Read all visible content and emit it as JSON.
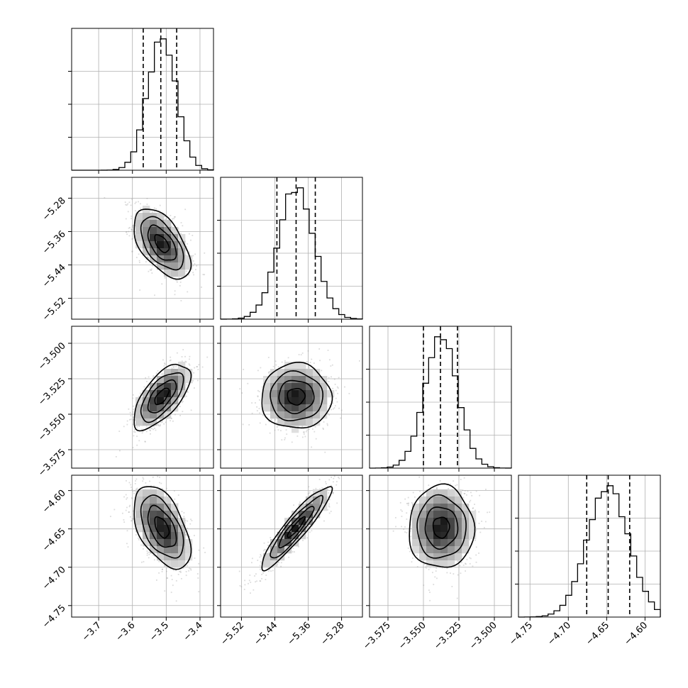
{
  "chart_data": {
    "type": "corner",
    "parameters": [
      {
        "ticks": [
          -3.7,
          -3.6,
          -3.5,
          -3.4
        ],
        "tick_labels": [
          "−3.7",
          "−3.6",
          "−3.5",
          "−3.4"
        ],
        "range": [
          -3.78,
          -3.36
        ],
        "mean": -3.513,
        "sd": 0.042,
        "quantiles": [
          -3.568,
          -3.516,
          -3.469
        ]
      },
      {
        "ticks": [
          -5.52,
          -5.44,
          -5.36,
          -5.28
        ],
        "tick_labels": [
          "−5.52",
          "−5.44",
          "−5.36",
          "−5.28"
        ],
        "range": [
          -5.57,
          -5.23
        ],
        "mean": -5.389,
        "sd": 0.042,
        "quantiles": [
          -5.435,
          -5.389,
          -5.343
        ]
      },
      {
        "ticks": [
          -3.575,
          -3.55,
          -3.525,
          -3.5
        ],
        "tick_labels": [
          "−3.575",
          "−3.550",
          "−3.525",
          "−3.500"
        ],
        "range": [
          -3.588,
          -3.488
        ],
        "mean": -3.5375,
        "sd": 0.0115,
        "quantiles": [
          -3.55,
          -3.538,
          -3.526
        ]
      },
      {
        "ticks": [
          -4.75,
          -4.7,
          -4.65,
          -4.6
        ],
        "tick_labels": [
          "−4.75",
          "−4.70",
          "−4.65",
          "−4.60"
        ],
        "range": [
          -4.765,
          -4.58
        ],
        "mean": -4.648,
        "sd": 0.027,
        "quantiles": [
          -4.676,
          -4.648,
          -4.62
        ]
      }
    ],
    "correlations": [
      [
        1.0,
        -0.55,
        0.65,
        -0.5
      ],
      [
        -0.55,
        1.0,
        0.0,
        0.92
      ],
      [
        0.65,
        0.0,
        1.0,
        0.0
      ],
      [
        -0.5,
        0.92,
        0.0,
        1.0
      ]
    ],
    "grid": true,
    "quantile_lines": "dashed"
  }
}
